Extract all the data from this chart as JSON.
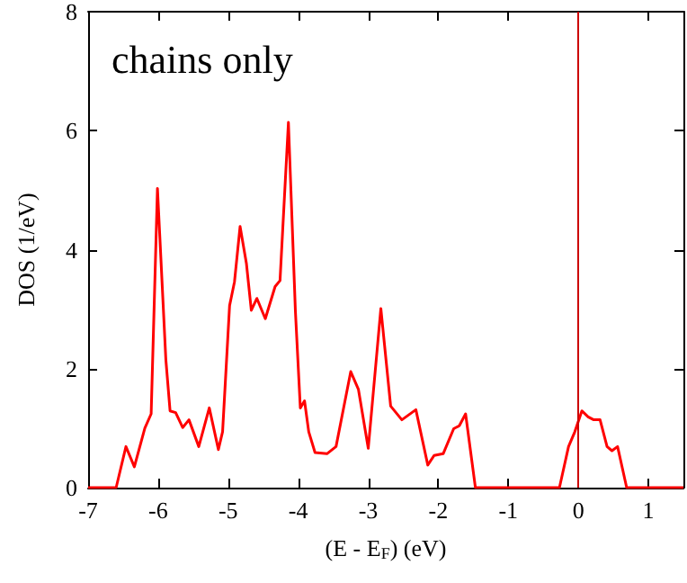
{
  "chart_data": {
    "type": "line",
    "xlabel": "(E - E$_{F}$) (eV)",
    "ylabel": "DOS (1/eV)",
    "annotations": [
      "chains only"
    ],
    "xlim": [
      -7,
      1.5
    ],
    "xticks": [
      -7,
      -6,
      -5,
      -4,
      -3,
      -2,
      -1,
      0,
      1
    ],
    "ylim": [
      0,
      8
    ],
    "yticks": [
      0,
      2,
      4,
      6,
      8
    ],
    "grid": false,
    "marker": "none",
    "line_style": "solid",
    "ref_lines": [
      {
        "axis": "x",
        "value": 0,
        "color": "#cc0000"
      }
    ],
    "series": [
      {
        "color": "#ff0000",
        "x": [
          -7,
          -6.6,
          -6.46,
          -6.34,
          -6.19,
          -6.1,
          -6.01,
          -5.89,
          -5.83,
          -5.75,
          -5.65,
          -5.56,
          -5.42,
          -5.27,
          -5.14,
          -5.08,
          -4.98,
          -4.91,
          -4.83,
          -4.74,
          -4.67,
          -4.59,
          -4.47,
          -4.33,
          -4.26,
          -4.14,
          -4.04,
          -3.97,
          -3.91,
          -3.85,
          -3.76,
          -3.59,
          -3.46,
          -3.25,
          -3.14,
          -3.0,
          -2.82,
          -2.68,
          -2.52,
          -2.32,
          -2.15,
          -2.06,
          -1.93,
          -1.78,
          -1.7,
          -1.61,
          -1.47,
          -0.27,
          -0.14,
          -0.05,
          0.05,
          0.14,
          0.22,
          0.31,
          0.41,
          0.48,
          0.56,
          0.69,
          1.5
        ],
        "values": [
          0,
          0,
          0.69,
          0.35,
          1.0,
          1.24,
          5.03,
          2.15,
          1.29,
          1.26,
          1.01,
          1.14,
          0.69,
          1.34,
          0.64,
          0.94,
          3.06,
          3.46,
          4.39,
          3.77,
          2.98,
          3.18,
          2.84,
          3.38,
          3.48,
          6.14,
          2.96,
          1.34,
          1.46,
          0.94,
          0.59,
          0.57,
          0.69,
          1.95,
          1.65,
          0.66,
          3.01,
          1.37,
          1.14,
          1.31,
          0.38,
          0.54,
          0.57,
          0.99,
          1.04,
          1.24,
          0,
          0,
          0.69,
          0.94,
          1.29,
          1.19,
          1.14,
          1.14,
          0.69,
          0.62,
          0.69,
          0,
          0
        ]
      }
    ]
  }
}
